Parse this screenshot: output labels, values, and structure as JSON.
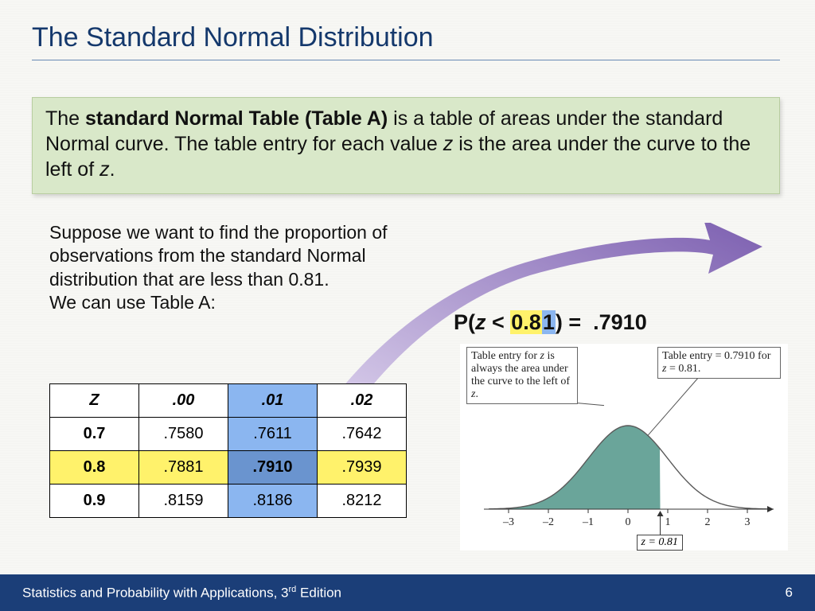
{
  "title": "The Standard Normal Distribution",
  "greenBox": {
    "pre": "The ",
    "bold": "standard Normal Table (Table A)",
    "post": " is a table of areas under the standard Normal curve.  The table entry for each value ",
    "var1": "z",
    "mid": " is the area under the curve to the left of ",
    "var2": "z",
    "end": "."
  },
  "bodyText": "Suppose we want to find the proportion of observations from the standard Normal distribution that are less than 0.81.\nWe can use Table A:",
  "formula": {
    "p": "P(",
    "z": "z",
    "lt": " < ",
    "yellow": "0.8",
    "blue": "1",
    "close": ") = ",
    "result": ".7910"
  },
  "table": {
    "header": [
      "Z",
      ".00",
      ".01",
      ".02"
    ],
    "rows": [
      {
        "z": "0.7",
        "cells": [
          ".7580",
          ".7611",
          ".7642"
        ]
      },
      {
        "z": "0.8",
        "cells": [
          ".7881",
          ".7910",
          ".7939"
        ]
      },
      {
        "z": "0.9",
        "cells": [
          ".8159",
          ".8186",
          ".8212"
        ]
      }
    ],
    "highlightCol": 1,
    "highlightRow": 1,
    "colors": {
      "yellow": "#fff26b",
      "blue": "#8bb6f0",
      "blueDark": "#6a94cf"
    }
  },
  "diagram": {
    "callout1": "Table entry for z is always the area under the curve to the left of z.",
    "callout2": "Table entry = 0.7910 for z = 0.81.",
    "zLabel": "z = 0.81",
    "ticks": [
      "-3",
      "-2",
      "-1",
      "0",
      "1",
      "2",
      "3"
    ],
    "fillColor": "#6aa59a",
    "lineColor": "#5a5a5a",
    "zPos": 0.81
  },
  "arrow": {
    "gradStart": "#e9e1f5",
    "gradEnd": "#7c5fb0"
  },
  "footer": {
    "text": "Statistics and Probability with Applications, 3",
    "sup": "rd",
    "after": " Edition",
    "page": "6"
  }
}
